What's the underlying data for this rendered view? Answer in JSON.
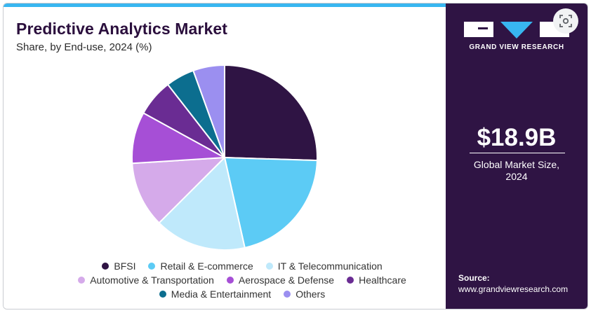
{
  "header": {
    "title": "Predictive Analytics Market",
    "subtitle": "Share, by End-use, 2024 (%)"
  },
  "sidebar": {
    "brand": "GRAND VIEW RESEARCH",
    "market_size": "$18.9B",
    "market_size_label_line1": "Global Market Size,",
    "market_size_label_line2": "2024",
    "source_label": "Source:",
    "source_url": "www.grandviewresearch.com"
  },
  "icons": {
    "logo": "grand-view-research-logo",
    "lens": "lens-search-icon"
  },
  "chart_data": {
    "type": "pie",
    "title": "Predictive Analytics Market",
    "subtitle": "Share, by End-use, 2024 (%)",
    "legend_position": "bottom",
    "slices": [
      {
        "label": "BFSI",
        "value": 25.5,
        "color": "#2f1444"
      },
      {
        "label": "Retail & E-commerce",
        "value": 21.0,
        "color": "#5ccbf5"
      },
      {
        "label": "IT & Telecommunication",
        "value": 16.0,
        "color": "#bfe9fb"
      },
      {
        "label": "Automotive & Transportation",
        "value": 11.5,
        "color": "#d5aaea"
      },
      {
        "label": "Aerospace & Defense",
        "value": 9.0,
        "color": "#a64fd6"
      },
      {
        "label": "Healthcare",
        "value": 6.5,
        "color": "#6a2c93"
      },
      {
        "label": "Media & Entertainment",
        "value": 5.0,
        "color": "#0c6e8f"
      },
      {
        "label": "Others",
        "value": 5.5,
        "color": "#9b8ff0"
      }
    ]
  }
}
